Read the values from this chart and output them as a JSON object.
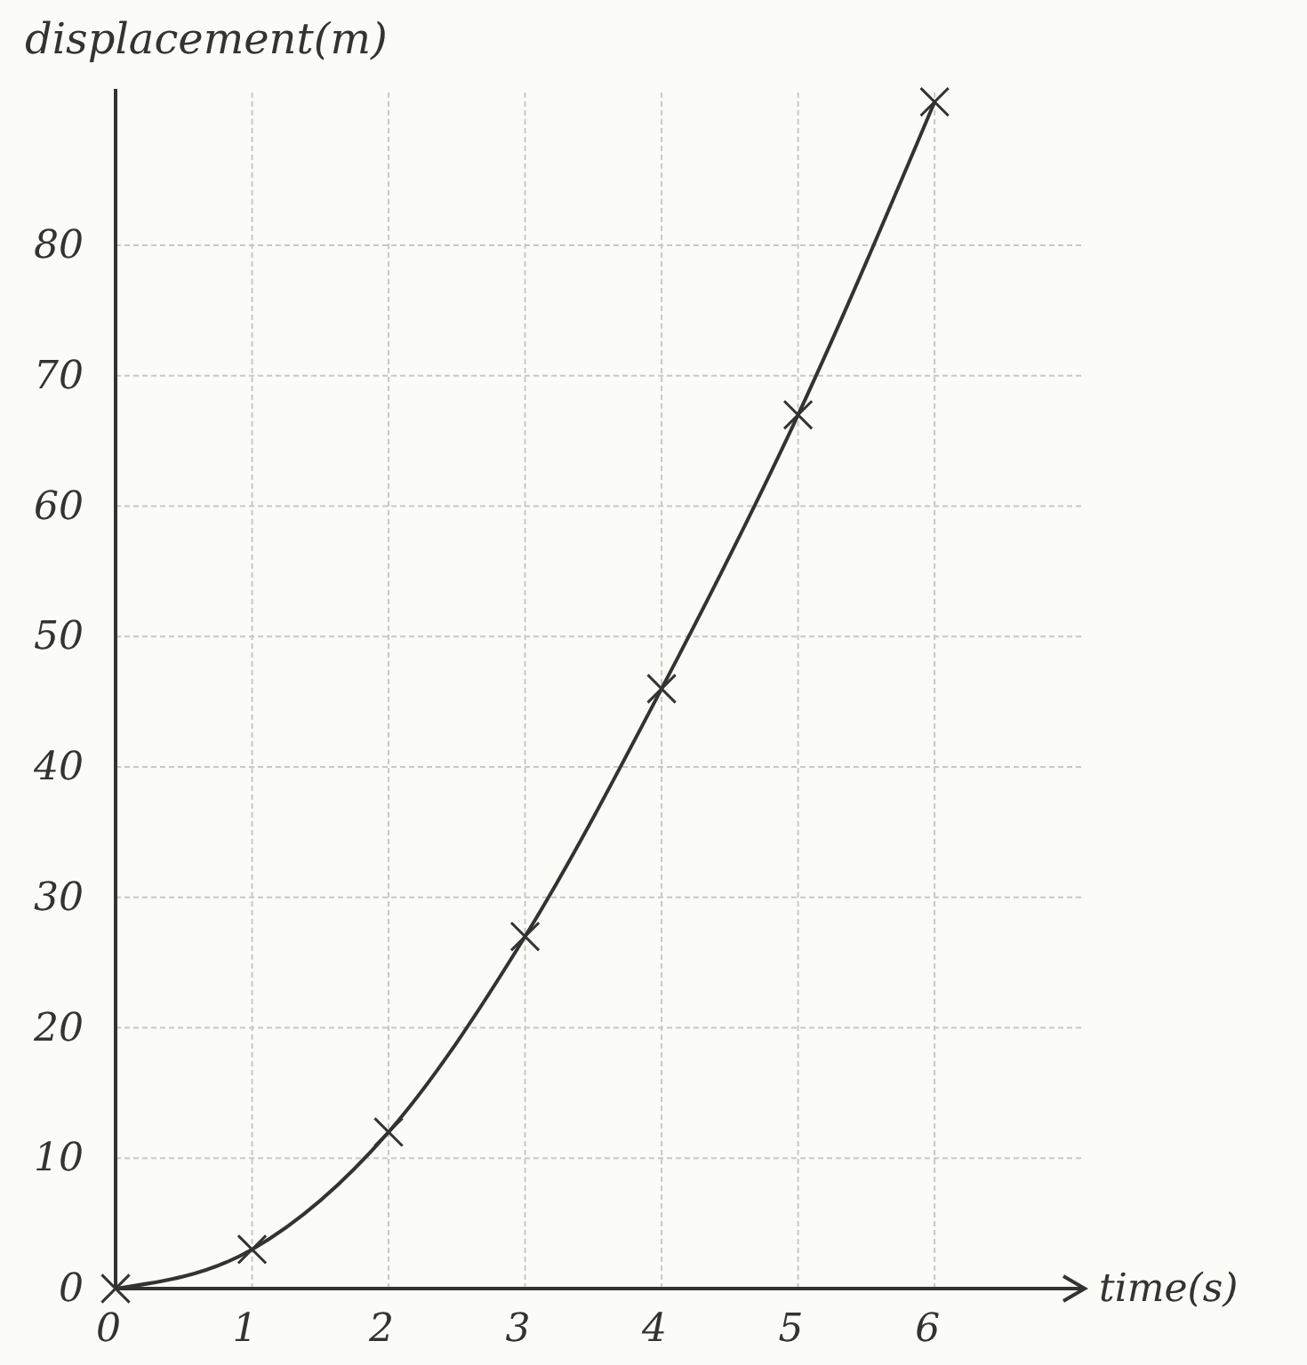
{
  "chart_data": {
    "type": "line",
    "xlabel": "time(s)",
    "ylabel": "displacement(m)",
    "x": [
      0,
      1,
      2,
      3,
      4,
      5,
      6
    ],
    "series": [
      {
        "color": "#333333",
        "values": [
          0,
          3,
          12,
          27,
          46,
          67,
          91
        ]
      }
    ],
    "xlim": [
      0,
      7.1
    ],
    "ylim": [
      0,
      92
    ],
    "xticks": [
      0,
      1,
      2,
      3,
      4,
      5,
      6
    ],
    "yticks": [
      0,
      10,
      20,
      30,
      40,
      50,
      60,
      70,
      80
    ],
    "grid": true,
    "marker": "cross",
    "line_style": "solid"
  }
}
